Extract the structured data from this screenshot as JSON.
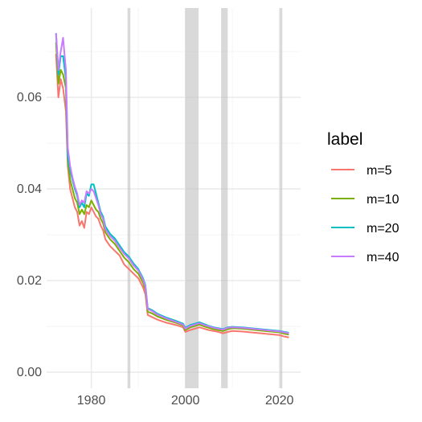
{
  "chart_data": {
    "type": "line",
    "title": "",
    "xlabel": "",
    "ylabel": "",
    "xlim": [
      1970.5,
      2024.5
    ],
    "ylim": [
      -0.0035,
      0.0795
    ],
    "grid": true,
    "x_ticks": [
      1980,
      2000,
      2020
    ],
    "x_tick_labels": [
      "1980",
      "2000",
      "2020"
    ],
    "y_ticks": [
      0.0,
      0.02,
      0.04,
      0.06
    ],
    "y_tick_labels": [
      "0.00",
      "0.02",
      "0.04",
      "0.06"
    ],
    "legend": {
      "title": "label",
      "position": "right"
    },
    "shaded_periods": [
      [
        1987.7,
        1988.3
      ],
      [
        2000.0,
        2002.8
      ],
      [
        2007.6,
        2009.0
      ],
      [
        2020.1,
        2020.6
      ]
    ],
    "shade_color": "#bfbfbf",
    "series": [
      {
        "name": "m=5",
        "color": "#F8766D",
        "points": [
          [
            1972.5,
            0.0695
          ],
          [
            1973.0,
            0.06
          ],
          [
            1973.5,
            0.064
          ],
          [
            1974.0,
            0.062
          ],
          [
            1974.6,
            0.057
          ],
          [
            1975.0,
            0.045
          ],
          [
            1975.5,
            0.04
          ],
          [
            1976.0,
            0.038
          ],
          [
            1976.5,
            0.036
          ],
          [
            1977.0,
            0.035
          ],
          [
            1977.5,
            0.032
          ],
          [
            1978.0,
            0.033
          ],
          [
            1978.5,
            0.0315
          ],
          [
            1979.0,
            0.035
          ],
          [
            1979.5,
            0.0345
          ],
          [
            1980.0,
            0.036
          ],
          [
            1980.5,
            0.035
          ],
          [
            1981.0,
            0.034
          ],
          [
            1981.5,
            0.0335
          ],
          [
            1982.0,
            0.032
          ],
          [
            1982.5,
            0.031
          ],
          [
            1983.0,
            0.029
          ],
          [
            1984.0,
            0.0275
          ],
          [
            1985.0,
            0.0265
          ],
          [
            1986.0,
            0.0255
          ],
          [
            1987.0,
            0.0235
          ],
          [
            1988.0,
            0.0225
          ],
          [
            1989.0,
            0.0215
          ],
          [
            1990.0,
            0.0205
          ],
          [
            1991.0,
            0.0185
          ],
          [
            1991.5,
            0.017
          ],
          [
            1992.0,
            0.0125
          ],
          [
            1993.0,
            0.012
          ],
          [
            1994.0,
            0.0115
          ],
          [
            1996.0,
            0.0108
          ],
          [
            1998.0,
            0.0103
          ],
          [
            1999.5,
            0.0098
          ],
          [
            2000.0,
            0.0088
          ],
          [
            2001.0,
            0.0092
          ],
          [
            2002.0,
            0.0095
          ],
          [
            2003.0,
            0.0098
          ],
          [
            2004.0,
            0.0095
          ],
          [
            2005.0,
            0.0092
          ],
          [
            2006.0,
            0.009
          ],
          [
            2007.0,
            0.0088
          ],
          [
            2008.0,
            0.0085
          ],
          [
            2009.0,
            0.0088
          ],
          [
            2010.0,
            0.009
          ],
          [
            2012.0,
            0.0089
          ],
          [
            2014.0,
            0.0087
          ],
          [
            2016.0,
            0.0085
          ],
          [
            2018.0,
            0.0083
          ],
          [
            2020.0,
            0.0081
          ],
          [
            2021.0,
            0.0078
          ],
          [
            2022.0,
            0.0076
          ]
        ]
      },
      {
        "name": "m=10",
        "color": "#7CAE00",
        "points": [
          [
            1972.5,
            0.072
          ],
          [
            1973.0,
            0.063
          ],
          [
            1973.5,
            0.066
          ],
          [
            1974.0,
            0.065
          ],
          [
            1974.6,
            0.062
          ],
          [
            1975.0,
            0.046
          ],
          [
            1975.5,
            0.042
          ],
          [
            1976.0,
            0.04
          ],
          [
            1976.5,
            0.038
          ],
          [
            1977.0,
            0.037
          ],
          [
            1977.5,
            0.0345
          ],
          [
            1978.0,
            0.0355
          ],
          [
            1978.5,
            0.0345
          ],
          [
            1979.0,
            0.0365
          ],
          [
            1979.5,
            0.036
          ],
          [
            1980.0,
            0.0375
          ],
          [
            1980.5,
            0.0365
          ],
          [
            1981.0,
            0.0355
          ],
          [
            1981.5,
            0.035
          ],
          [
            1982.0,
            0.0335
          ],
          [
            1982.5,
            0.0325
          ],
          [
            1983.0,
            0.0305
          ],
          [
            1984.0,
            0.029
          ],
          [
            1985.0,
            0.028
          ],
          [
            1986.0,
            0.0265
          ],
          [
            1987.0,
            0.025
          ],
          [
            1988.0,
            0.024
          ],
          [
            1989.0,
            0.0225
          ],
          [
            1990.0,
            0.0215
          ],
          [
            1991.0,
            0.0195
          ],
          [
            1991.5,
            0.018
          ],
          [
            1992.0,
            0.0132
          ],
          [
            1993.0,
            0.0128
          ],
          [
            1994.0,
            0.0122
          ],
          [
            1996.0,
            0.0114
          ],
          [
            1998.0,
            0.0108
          ],
          [
            1999.5,
            0.0102
          ],
          [
            2000.0,
            0.0092
          ],
          [
            2001.0,
            0.0098
          ],
          [
            2002.0,
            0.0101
          ],
          [
            2003.0,
            0.0104
          ],
          [
            2004.0,
            0.01
          ],
          [
            2005.0,
            0.0097
          ],
          [
            2006.0,
            0.0094
          ],
          [
            2007.0,
            0.0092
          ],
          [
            2008.0,
            0.009
          ],
          [
            2009.0,
            0.0094
          ],
          [
            2010.0,
            0.0096
          ],
          [
            2012.0,
            0.0095
          ],
          [
            2014.0,
            0.0093
          ],
          [
            2016.0,
            0.0091
          ],
          [
            2018.0,
            0.0089
          ],
          [
            2020.0,
            0.0087
          ],
          [
            2021.0,
            0.0084
          ],
          [
            2022.0,
            0.0082
          ]
        ]
      },
      {
        "name": "m=20",
        "color": "#00BFC4",
        "points": [
          [
            1972.5,
            0.074
          ],
          [
            1973.0,
            0.065
          ],
          [
            1973.5,
            0.069
          ],
          [
            1974.0,
            0.069
          ],
          [
            1974.6,
            0.064
          ],
          [
            1975.0,
            0.047
          ],
          [
            1975.5,
            0.044
          ],
          [
            1976.0,
            0.042
          ],
          [
            1976.5,
            0.04
          ],
          [
            1977.0,
            0.0385
          ],
          [
            1977.5,
            0.036
          ],
          [
            1978.0,
            0.037
          ],
          [
            1978.5,
            0.036
          ],
          [
            1979.0,
            0.039
          ],
          [
            1979.5,
            0.0385
          ],
          [
            1980.0,
            0.041
          ],
          [
            1980.5,
            0.041
          ],
          [
            1981.0,
            0.039
          ],
          [
            1981.5,
            0.037
          ],
          [
            1982.0,
            0.035
          ],
          [
            1982.5,
            0.034
          ],
          [
            1983.0,
            0.0318
          ],
          [
            1984.0,
            0.0302
          ],
          [
            1985.0,
            0.0292
          ],
          [
            1986.0,
            0.0277
          ],
          [
            1987.0,
            0.0262
          ],
          [
            1988.0,
            0.0252
          ],
          [
            1989.0,
            0.0237
          ],
          [
            1990.0,
            0.0225
          ],
          [
            1991.0,
            0.0205
          ],
          [
            1991.5,
            0.019
          ],
          [
            1992.0,
            0.014
          ],
          [
            1993.0,
            0.0135
          ],
          [
            1994.0,
            0.0128
          ],
          [
            1996.0,
            0.0119
          ],
          [
            1998.0,
            0.0112
          ],
          [
            1999.5,
            0.0106
          ],
          [
            2000.0,
            0.0097
          ],
          [
            2001.0,
            0.0103
          ],
          [
            2002.0,
            0.0106
          ],
          [
            2003.0,
            0.0109
          ],
          [
            2004.0,
            0.0105
          ],
          [
            2005.0,
            0.0101
          ],
          [
            2006.0,
            0.0098
          ],
          [
            2007.0,
            0.0096
          ],
          [
            2008.0,
            0.0094
          ],
          [
            2009.0,
            0.0098
          ],
          [
            2010.0,
            0.0099
          ],
          [
            2012.0,
            0.0098
          ],
          [
            2014.0,
            0.0096
          ],
          [
            2016.0,
            0.0094
          ],
          [
            2018.0,
            0.0092
          ],
          [
            2020.0,
            0.009
          ],
          [
            2021.0,
            0.0088
          ],
          [
            2022.0,
            0.0086
          ]
        ]
      },
      {
        "name": "m=40",
        "color": "#C77CFF",
        "points": [
          [
            1972.5,
            0.074
          ],
          [
            1973.0,
            0.066
          ],
          [
            1973.5,
            0.07
          ],
          [
            1974.0,
            0.073
          ],
          [
            1974.6,
            0.066
          ],
          [
            1975.0,
            0.049
          ],
          [
            1975.5,
            0.045
          ],
          [
            1976.0,
            0.0425
          ],
          [
            1976.5,
            0.0405
          ],
          [
            1977.0,
            0.039
          ],
          [
            1977.5,
            0.0365
          ],
          [
            1978.0,
            0.0375
          ],
          [
            1978.5,
            0.037
          ],
          [
            1979.0,
            0.0395
          ],
          [
            1979.5,
            0.039
          ],
          [
            1980.0,
            0.04
          ],
          [
            1980.5,
            0.0395
          ],
          [
            1981.0,
            0.038
          ],
          [
            1981.5,
            0.0365
          ],
          [
            1982.0,
            0.0345
          ],
          [
            1982.5,
            0.0335
          ],
          [
            1983.0,
            0.0312
          ],
          [
            1984.0,
            0.0297
          ],
          [
            1985.0,
            0.0287
          ],
          [
            1986.0,
            0.0272
          ],
          [
            1987.0,
            0.0258
          ],
          [
            1988.0,
            0.0248
          ],
          [
            1989.0,
            0.0233
          ],
          [
            1990.0,
            0.0222
          ],
          [
            1991.0,
            0.0202
          ],
          [
            1991.5,
            0.0187
          ],
          [
            1992.0,
            0.0138
          ],
          [
            1993.0,
            0.0133
          ],
          [
            1994.0,
            0.0126
          ],
          [
            1996.0,
            0.0117
          ],
          [
            1998.0,
            0.011
          ],
          [
            1999.5,
            0.0104
          ],
          [
            2000.0,
            0.0095
          ],
          [
            2001.0,
            0.0101
          ],
          [
            2002.0,
            0.0104
          ],
          [
            2003.0,
            0.0107
          ],
          [
            2004.0,
            0.0103
          ],
          [
            2005.0,
            0.01
          ],
          [
            2006.0,
            0.0097
          ],
          [
            2007.0,
            0.0095
          ],
          [
            2008.0,
            0.0093
          ],
          [
            2009.0,
            0.0097
          ],
          [
            2010.0,
            0.0098
          ],
          [
            2012.0,
            0.0097
          ],
          [
            2014.0,
            0.0095
          ],
          [
            2016.0,
            0.0093
          ],
          [
            2018.0,
            0.0091
          ],
          [
            2020.0,
            0.0089
          ],
          [
            2021.0,
            0.0087
          ],
          [
            2022.0,
            0.0085
          ]
        ]
      }
    ]
  }
}
